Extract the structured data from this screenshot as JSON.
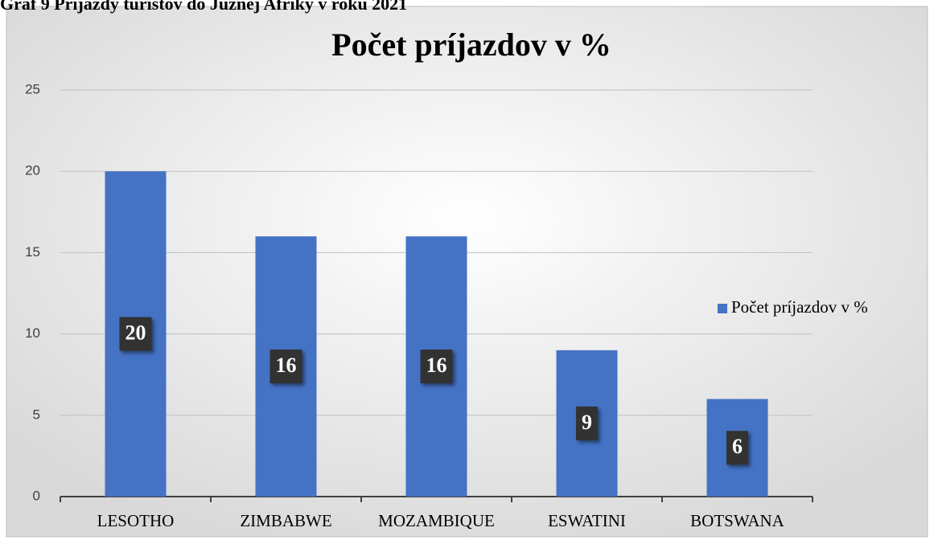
{
  "caption": "Graf 9 Príjazdy turistov do Južnej Afriky v roku 2021",
  "chart_data": {
    "type": "bar",
    "title": "Počet príjazdov v %",
    "categories": [
      "LESOTHO",
      "ZIMBABWE",
      "MOZAMBIQUE",
      "ESWATINI",
      "BOTSWANA"
    ],
    "series": [
      {
        "name": "Počet príjazdov v %",
        "color": "#4472c4",
        "values": [
          20,
          16,
          16,
          9,
          6
        ]
      }
    ],
    "ylim": [
      0,
      25
    ],
    "yticks": [
      0,
      5,
      10,
      15,
      20,
      25
    ],
    "grid": true,
    "legend": "right"
  }
}
